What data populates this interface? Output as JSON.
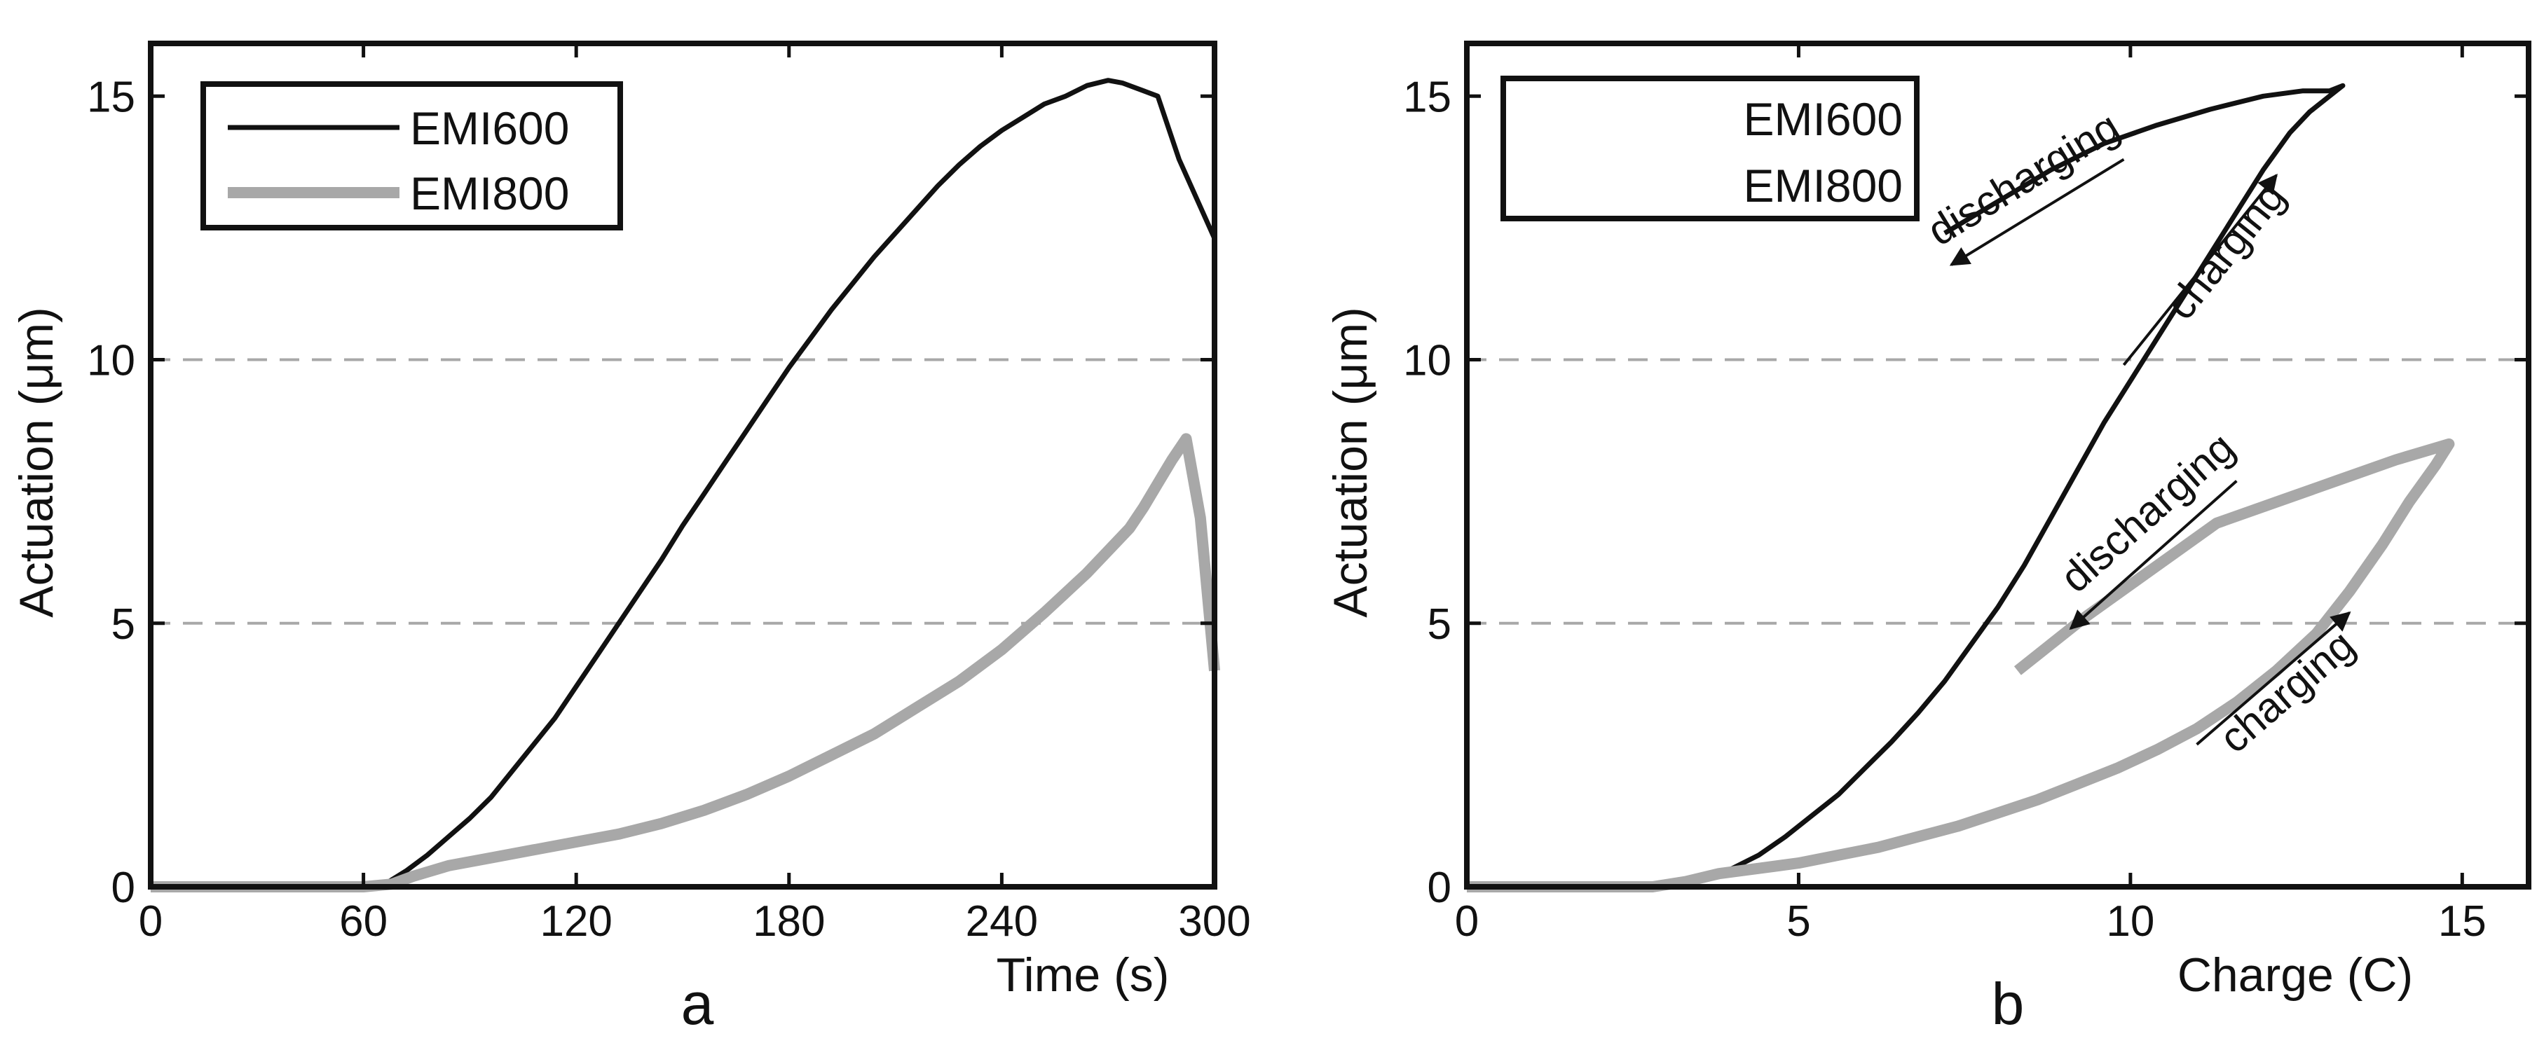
{
  "colors": {
    "black": "#111111",
    "gray": "#a8a8a8",
    "grid": "#a8a8a8"
  },
  "chart_data": [
    {
      "type": "line",
      "panel_label": "a",
      "xlabel": "Time (s)",
      "ylabel": "Actuation (μm)",
      "xlim": [
        0,
        300
      ],
      "ylim": [
        0,
        16
      ],
      "xticks": [
        0,
        60,
        120,
        180,
        240,
        300
      ],
      "yticks": [
        0,
        5,
        10,
        15
      ],
      "hgrid": [
        5,
        10
      ],
      "legend": {
        "placement": "top-left",
        "entries": [
          "EMI600",
          "EMI800"
        ]
      },
      "series": [
        {
          "name": "EMI600",
          "x": [
            0,
            60,
            66,
            72,
            78,
            84,
            90,
            96,
            102,
            108,
            114,
            120,
            126,
            132,
            138,
            144,
            150,
            156,
            162,
            168,
            174,
            180,
            186,
            192,
            198,
            204,
            210,
            216,
            222,
            228,
            234,
            240,
            246,
            252,
            258,
            264,
            270,
            274,
            280,
            284,
            290,
            300
          ],
          "y": [
            0,
            0,
            0.05,
            0.3,
            0.6,
            0.95,
            1.3,
            1.7,
            2.2,
            2.7,
            3.2,
            3.8,
            4.4,
            5.0,
            5.6,
            6.2,
            6.85,
            7.45,
            8.05,
            8.65,
            9.25,
            9.85,
            10.4,
            10.95,
            11.45,
            11.95,
            12.4,
            12.85,
            13.3,
            13.7,
            14.05,
            14.35,
            14.6,
            14.85,
            15.0,
            15.2,
            15.3,
            15.25,
            15.1,
            15.0,
            13.8,
            12.3
          ]
        },
        {
          "name": "EMI800",
          "x": [
            0,
            60,
            68,
            74,
            84,
            96,
            108,
            120,
            132,
            144,
            156,
            168,
            180,
            192,
            204,
            216,
            228,
            240,
            252,
            264,
            276,
            280,
            284,
            288,
            292,
            296,
            300
          ],
          "y": [
            0,
            0,
            0.05,
            0.2,
            0.4,
            0.55,
            0.7,
            0.85,
            1.0,
            1.2,
            1.45,
            1.75,
            2.1,
            2.5,
            2.9,
            3.4,
            3.9,
            4.5,
            5.2,
            5.95,
            6.8,
            7.2,
            7.65,
            8.1,
            8.5,
            7.0,
            4.1
          ]
        }
      ]
    },
    {
      "type": "line",
      "panel_label": "b",
      "xlabel": "Charge (C)",
      "ylabel": "Actuation (μm)",
      "xlim": [
        0,
        16
      ],
      "ylim": [
        0,
        16
      ],
      "xticks": [
        0,
        5,
        10,
        15
      ],
      "yticks": [
        0,
        5,
        10,
        15
      ],
      "hgrid": [
        5,
        10
      ],
      "legend": {
        "placement": "top-left",
        "entries": [
          "EMI600",
          "EMI800"
        ]
      },
      "series": [
        {
          "name": "EMI600",
          "x": [
            7.2,
            8.0,
            8.8,
            9.6,
            10.4,
            11.2,
            12.0,
            12.6,
            13.0,
            13.2,
            13.0,
            12.7,
            12.4,
            12.0,
            11.6,
            11.2,
            10.8,
            10.4,
            10.0,
            9.6,
            9.2,
            8.8,
            8.4,
            8.0,
            7.6,
            7.2,
            6.8,
            6.4,
            6.0,
            5.6,
            5.2,
            4.8,
            4.4,
            4.0,
            3.6,
            3.3,
            3.0,
            2.6,
            0
          ],
          "y": [
            12.4,
            13.0,
            13.6,
            14.1,
            14.45,
            14.75,
            15.0,
            15.1,
            15.1,
            15.2,
            15.0,
            14.7,
            14.3,
            13.6,
            12.8,
            12.0,
            11.2,
            10.4,
            9.6,
            8.8,
            7.9,
            7.0,
            6.1,
            5.3,
            4.6,
            3.9,
            3.3,
            2.75,
            2.25,
            1.75,
            1.35,
            0.95,
            0.6,
            0.35,
            0.15,
            0.05,
            0,
            0,
            0
          ]
        },
        {
          "name": "EMI800",
          "x": [
            8.3,
            9.3,
            10.3,
            11.3,
            12.2,
            13.1,
            14.0,
            14.8,
            14.6,
            14.2,
            13.8,
            13.3,
            12.8,
            12.2,
            11.6,
            11.0,
            10.4,
            9.8,
            9.2,
            8.6,
            8.0,
            7.4,
            6.8,
            6.2,
            5.6,
            5.0,
            4.4,
            3.8,
            3.3,
            2.8,
            0
          ],
          "y": [
            4.1,
            5.1,
            6.0,
            6.9,
            7.3,
            7.7,
            8.1,
            8.4,
            8.0,
            7.3,
            6.5,
            5.6,
            4.8,
            4.1,
            3.5,
            3.0,
            2.6,
            2.25,
            1.95,
            1.65,
            1.4,
            1.15,
            0.95,
            0.75,
            0.6,
            0.45,
            0.35,
            0.25,
            0.1,
            0,
            0
          ]
        }
      ],
      "annotations": [
        {
          "text": "discharging",
          "series": "EMI600",
          "x": 8.5,
          "y": 13.2,
          "arrow_from": [
            9.9,
            13.8
          ],
          "arrow_to": [
            7.3,
            11.8
          ]
        },
        {
          "text": "charging",
          "series": "EMI600",
          "x": 11.6,
          "y": 11.9,
          "arrow_from": [
            9.9,
            9.9
          ],
          "arrow_to": [
            12.2,
            13.5
          ]
        },
        {
          "text": "discharging",
          "series": "EMI800",
          "x": 10.4,
          "y": 6.9,
          "arrow_from": [
            11.6,
            7.7
          ],
          "arrow_to": [
            9.1,
            4.9
          ]
        },
        {
          "text": "charging",
          "series": "EMI800",
          "x": 12.5,
          "y": 3.5,
          "arrow_from": [
            11.0,
            2.7
          ],
          "arrow_to": [
            13.3,
            5.2
          ]
        }
      ]
    }
  ]
}
